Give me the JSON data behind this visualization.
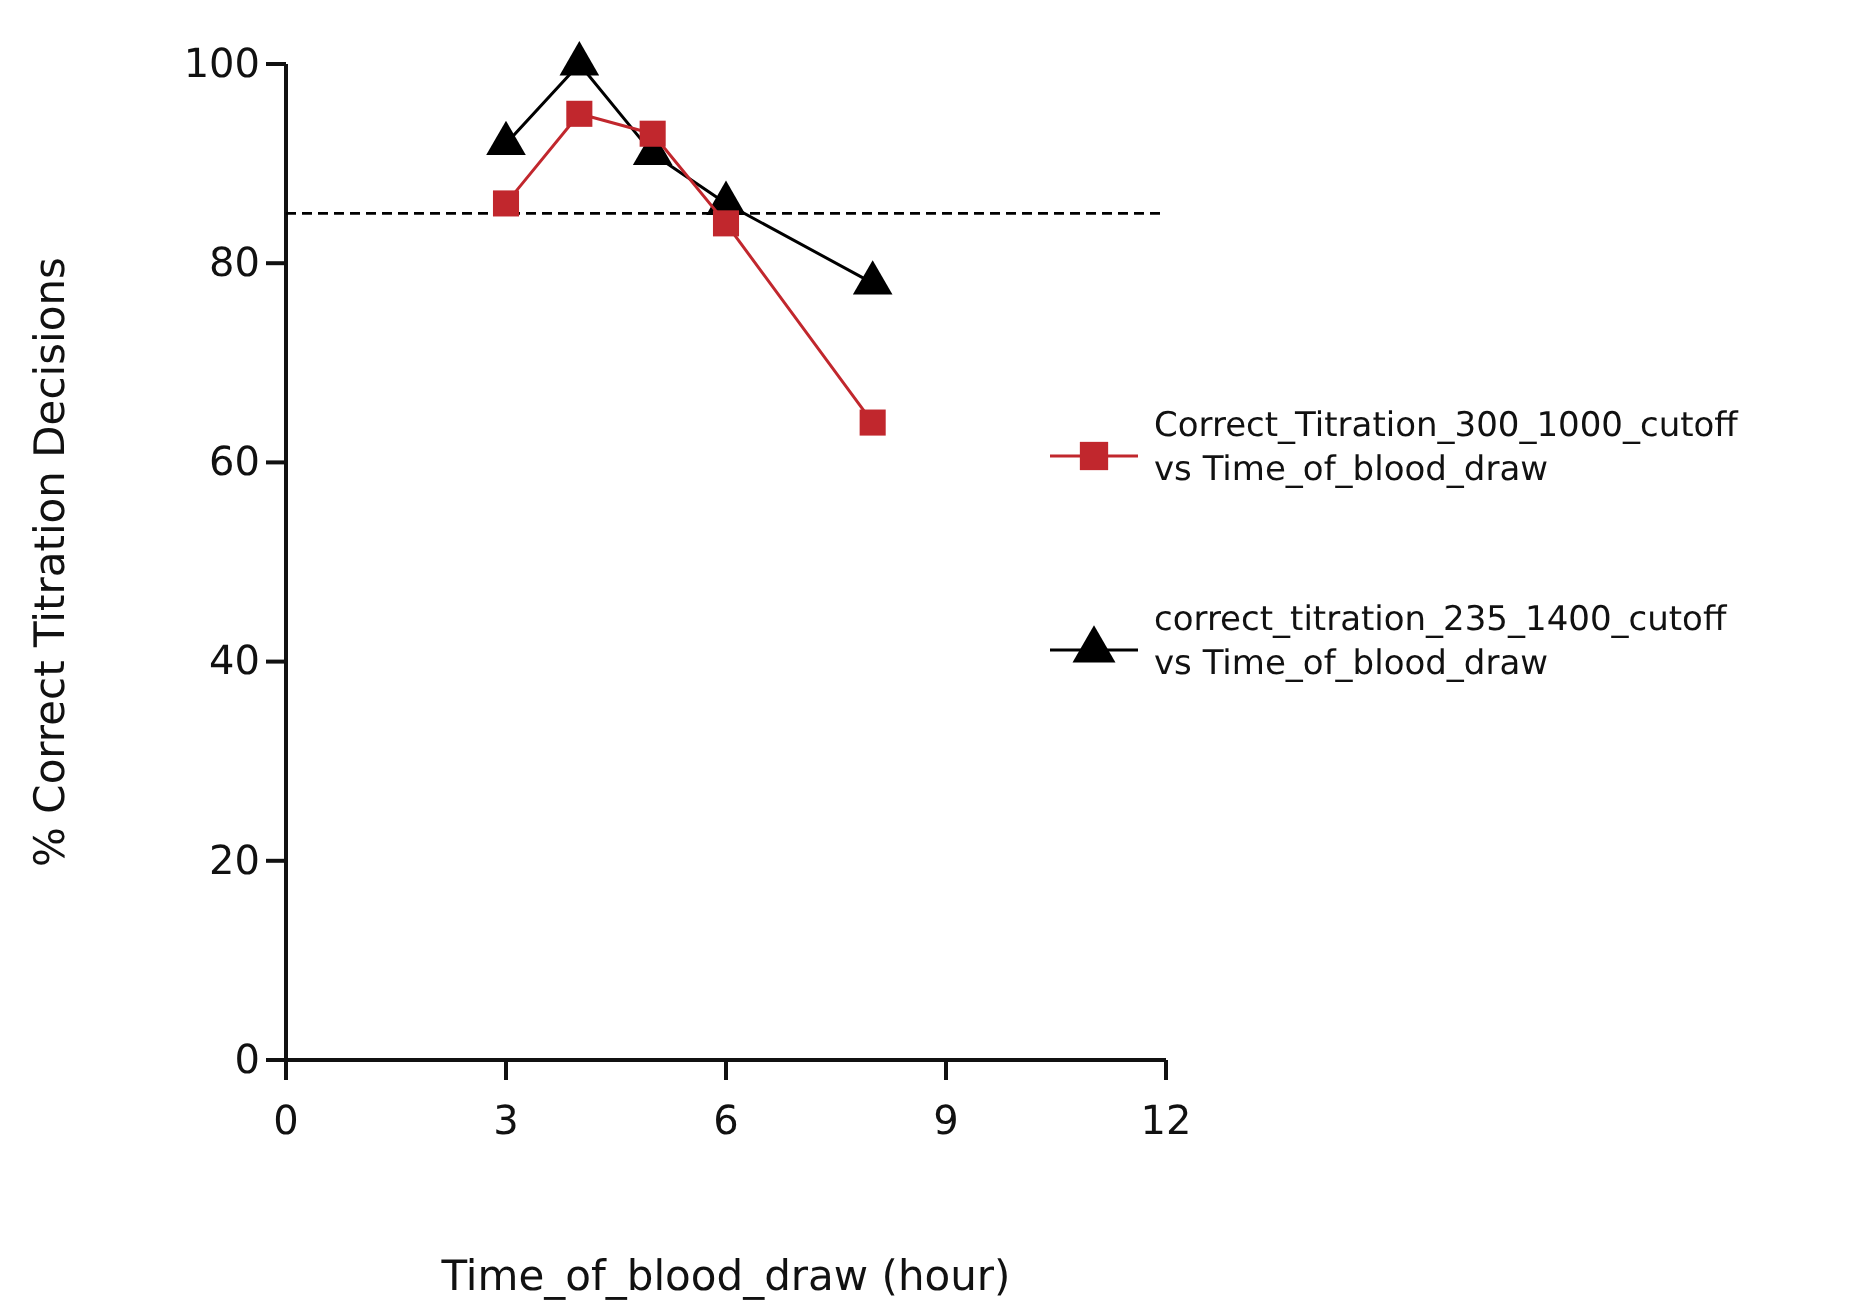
{
  "chart_data": {
    "type": "line",
    "xlabel": "Time_of_blood_draw (hour)",
    "ylabel": "% Correct Titration Decisions",
    "x": [
      3,
      4,
      5,
      6,
      8
    ],
    "series": [
      {
        "name": "Correct_Titration_300_1000_cutoff vs Time_of_blood_draw",
        "color": "#c1272d",
        "marker": "square",
        "values": [
          86,
          95,
          93,
          84,
          64
        ]
      },
      {
        "name": "correct_titration_235_1400_cutoff vs Time_of_blood_draw",
        "color": "#000000",
        "marker": "triangle",
        "values": [
          92,
          100,
          91,
          86,
          78
        ]
      }
    ],
    "xlim": [
      0,
      12
    ],
    "xticks": [
      0,
      3,
      6,
      9,
      12
    ],
    "ylim": [
      0,
      100
    ],
    "yticks": [
      0,
      20,
      40,
      60,
      80,
      100
    ],
    "ref_lines": [
      {
        "axis": "y",
        "value": 85,
        "color": "#000000",
        "line_style": "dashed"
      }
    ],
    "legend": "right",
    "grid": false,
    "line_style": "solid"
  }
}
